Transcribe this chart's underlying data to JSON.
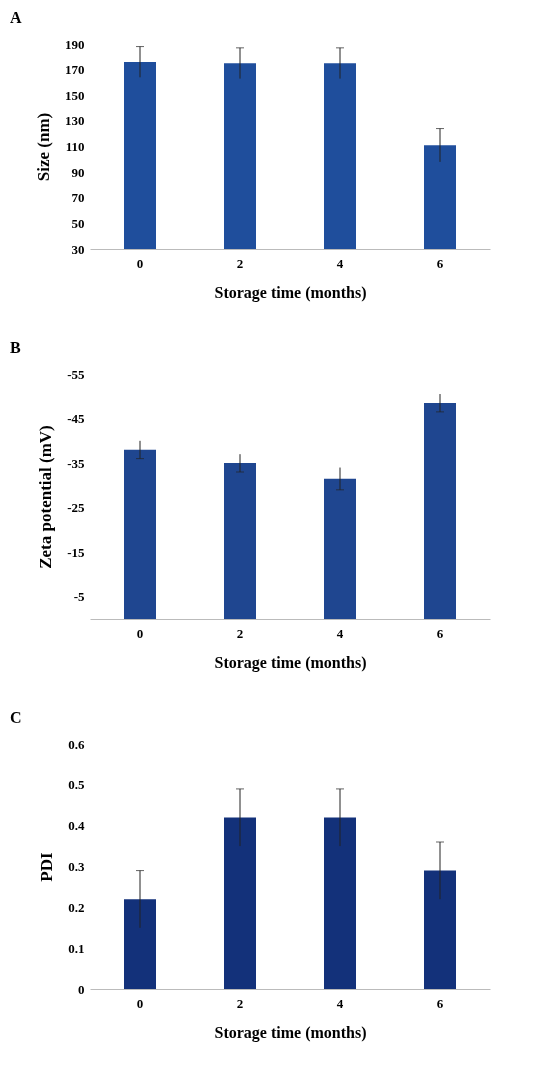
{
  "chart_data": [
    {
      "type": "bar",
      "title": "A",
      "categories": [
        "0",
        "2",
        "4",
        "6"
      ],
      "values": [
        176,
        175,
        175,
        111
      ],
      "errors": [
        12,
        12,
        12,
        13
      ],
      "color": "#1f4e9c",
      "xlabel": "Storage time (months)",
      "ylabel": "Size (nm)",
      "ylim": [
        30,
        190
      ],
      "yticks": [
        30,
        50,
        70,
        90,
        110,
        130,
        150,
        170,
        190
      ],
      "grid": false
    },
    {
      "type": "bar",
      "title": "B",
      "categories": [
        "0",
        "2",
        "4",
        "6"
      ],
      "values": [
        -38,
        -35,
        -31.5,
        -48.5
      ],
      "errors": [
        2,
        2,
        2.5,
        2
      ],
      "color": "#1f4690",
      "xlabel": "Storage time (months)",
      "ylabel": "Zeta potential (mV)",
      "ylim": [
        0,
        -55
      ],
      "yticks": [
        -5,
        -15,
        -25,
        -35,
        -45,
        -55
      ],
      "grid": false
    },
    {
      "type": "bar",
      "title": "C",
      "categories": [
        "0",
        "2",
        "4",
        "6"
      ],
      "values": [
        0.22,
        0.42,
        0.42,
        0.29
      ],
      "errors": [
        0.07,
        0.07,
        0.07,
        0.07
      ],
      "color": "#13317a",
      "xlabel": "Storage time (months)",
      "ylabel": "PDI",
      "ylim": [
        0,
        0.6
      ],
      "yticks": [
        0,
        0.1,
        0.2,
        0.3,
        0.4,
        0.5,
        0.6
      ],
      "grid": false
    }
  ]
}
